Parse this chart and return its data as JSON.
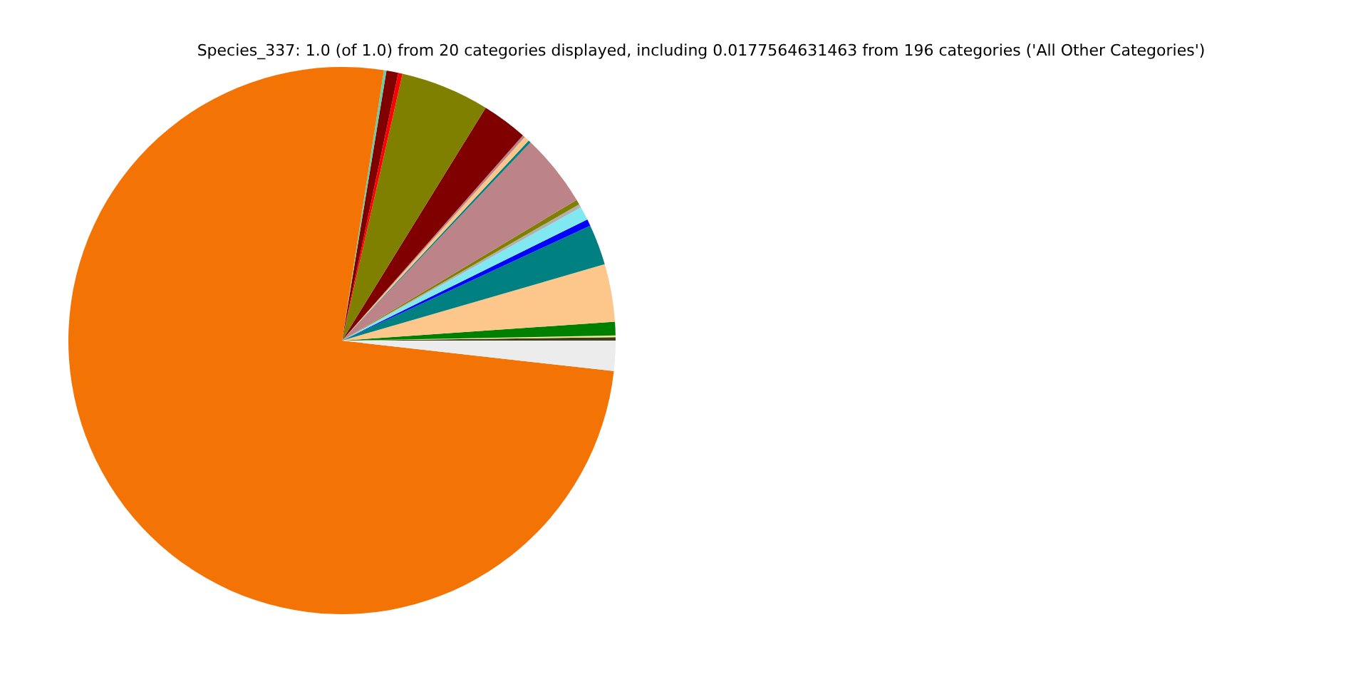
{
  "chart_data": {
    "type": "pie",
    "title": "Species_337: 1.0 (of 1.0) from 20 categories displayed, including 0.0177564631463 from 196 categories ('All Other Categories')",
    "categories": [
      null,
      null,
      null,
      null,
      null,
      null,
      null,
      null,
      null,
      null,
      null,
      null,
      null,
      null,
      null,
      null,
      null,
      null,
      null,
      null
    ],
    "values": [
      0.2,
      0.1,
      0.8,
      3.4,
      2.4,
      0.4,
      0.8,
      0.2,
      0.3,
      4.3,
      0.15,
      0.3,
      0.15,
      2.7,
      5.25,
      0.25,
      0.7,
      0.15,
      75.67,
      1.78
    ],
    "colors": [
      "#3b3b1e",
      "#f0e68c",
      "#008000",
      "#fdc68a",
      "#008080",
      "#0000ff",
      "#80e8f0",
      "#b0b0b0",
      "#808000",
      "#bc8389",
      "#008080",
      "#fdc68a",
      "#bc8389",
      "#800000",
      "#808000",
      "#ff0000",
      "#800000",
      "#66cdaa",
      "#f37304",
      "#ececec"
    ],
    "legend": false
  }
}
